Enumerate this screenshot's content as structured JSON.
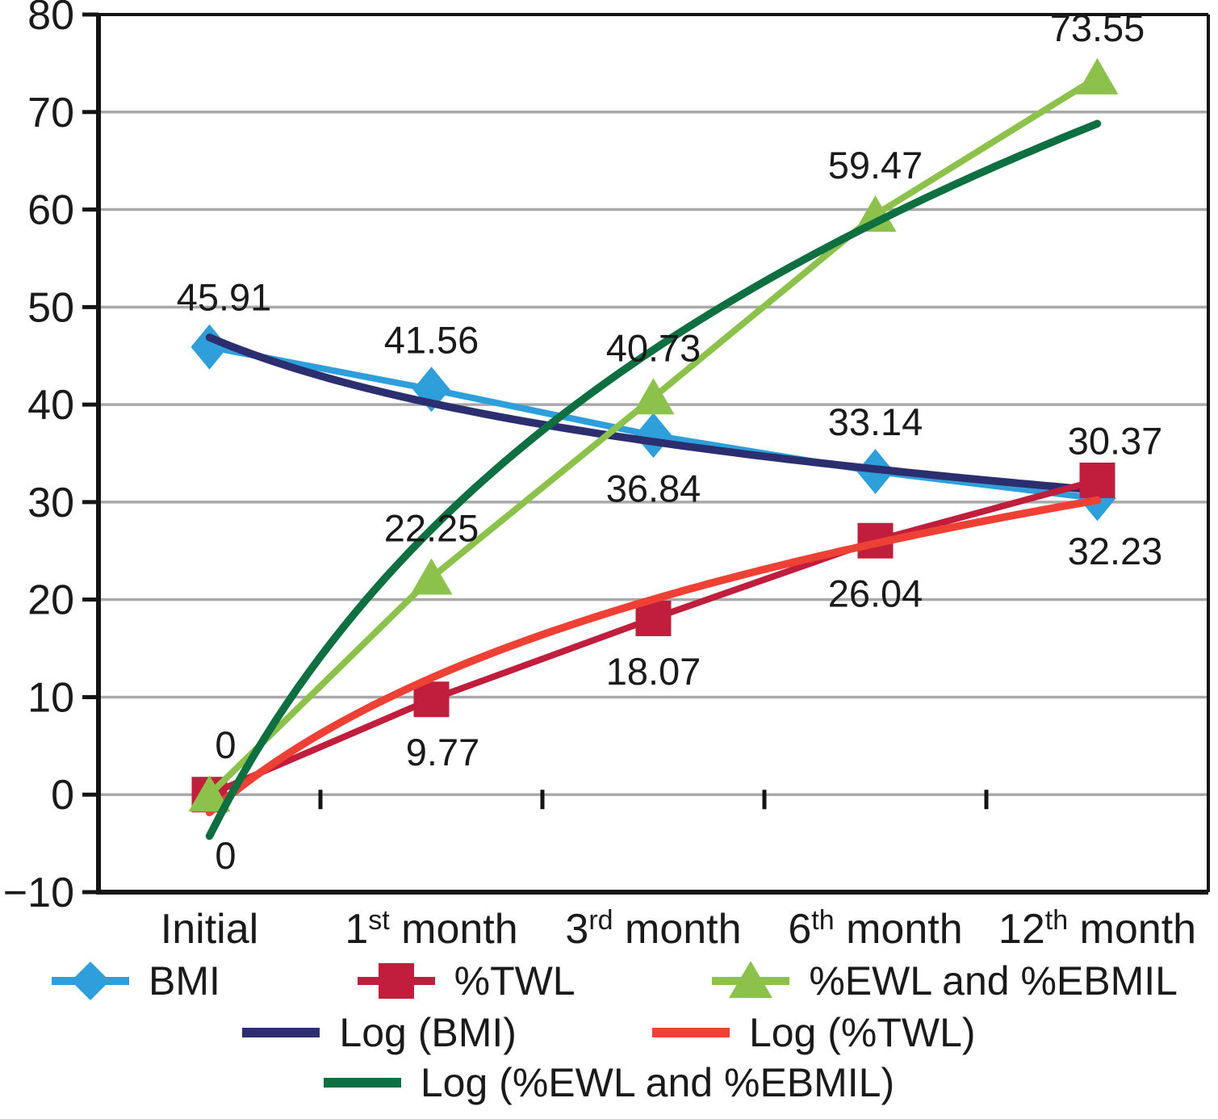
{
  "chart_data": {
    "type": "line",
    "title": "",
    "grid": "horizontal",
    "legend_position": "bottom",
    "categories": [
      {
        "pre": "Initial",
        "sup": "",
        "post": ""
      },
      {
        "pre": "1",
        "sup": "st",
        "post": " month"
      },
      {
        "pre": "3",
        "sup": "rd",
        "post": " month"
      },
      {
        "pre": "6",
        "sup": "th",
        "post": " month"
      },
      {
        "pre": "12",
        "sup": "th",
        "post": " month"
      }
    ],
    "y_axis": {
      "min": -10,
      "max": 80,
      "step": 10,
      "tick_labels": [
        "80",
        "70",
        "60",
        "50",
        "40",
        "30",
        "20",
        "10",
        "0",
        "−10"
      ]
    },
    "series": [
      {
        "name": "BMI",
        "marker": "diamond",
        "color": "#2E9FDA",
        "values": [
          45.91,
          41.56,
          36.84,
          33.14,
          30.37
        ],
        "labels": [
          "45.91",
          "41.56",
          "36.84",
          "33.14",
          "30.37"
        ],
        "label_pos": [
          "above",
          "above",
          "below",
          "above",
          "above"
        ],
        "label_dx": [
          18,
          0,
          0,
          0,
          22
        ],
        "label_dy": [
          0,
          0,
          0,
          0,
          -10
        ]
      },
      {
        "name": "%TWL",
        "marker": "square",
        "color": "#C01E3C",
        "values": [
          0,
          9.77,
          18.07,
          26.04,
          32.23
        ],
        "labels": [
          "0",
          "9.77",
          "18.07",
          "26.04",
          "32.23"
        ],
        "label_pos": [
          "above",
          "below",
          "below",
          "below",
          "below"
        ],
        "label_dx": [
          20,
          14,
          0,
          0,
          22
        ],
        "label_dy": [
          0,
          0,
          0,
          0,
          22
        ]
      },
      {
        "name": "%EWL and %EBMIL",
        "marker": "triangle",
        "color": "#8CC14B",
        "values": [
          0,
          22.25,
          40.73,
          59.47,
          73.55
        ],
        "labels": [
          "0",
          "22.25",
          "40.73",
          "59.47",
          "73.55"
        ],
        "label_pos": [
          "below",
          "above",
          "above",
          "above",
          "above"
        ],
        "label_dx": [
          20,
          0,
          0,
          0,
          0
        ],
        "label_dy": [
          10,
          0,
          0,
          0,
          0
        ]
      }
    ],
    "trendlines": [
      {
        "name": "Log (BMI)",
        "for": "BMI",
        "color": "#2B2E6F",
        "a": 46.89,
        "b": -9.74
      },
      {
        "name": "Log (%TWL)",
        "for": "%TWL",
        "color": "#EE4035",
        "a": -1.83,
        "b": 19.9
      },
      {
        "name": "Log (%EWL and %EBMIL)",
        "for": "%EWL and %EBMIL",
        "color": "#0E6F41",
        "a": -4.25,
        "b": 45.39
      }
    ]
  },
  "colors": {
    "text": "#1A1A1A",
    "grid": "#A9A9A9",
    "axis": "#141414",
    "background": "#FFFFFF"
  }
}
